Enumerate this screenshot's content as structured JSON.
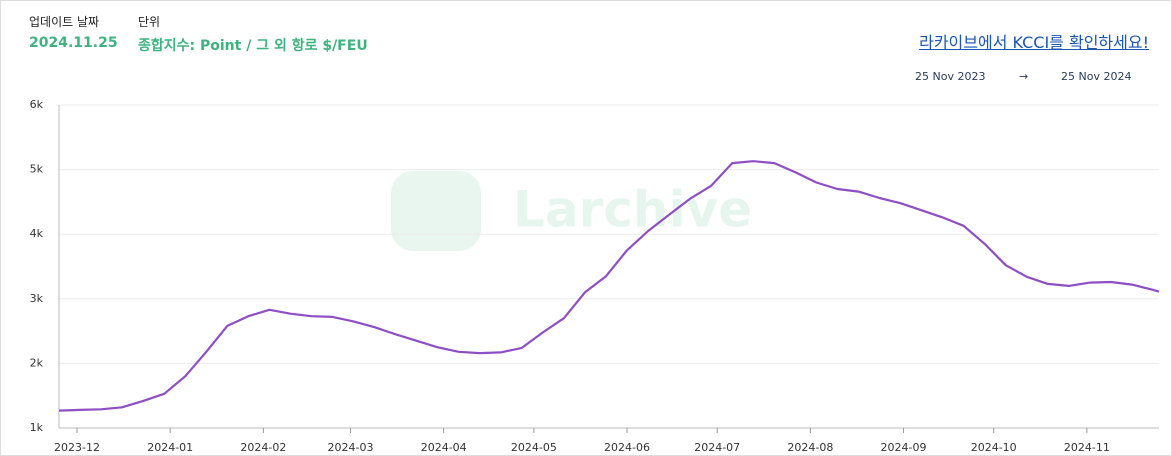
{
  "header": {
    "update_label": "업데이트 날짜",
    "update_date": "2024.11.25",
    "unit_label": "단위",
    "unit_value": "종합지수: Point / 그 외 항로 $/FEU",
    "link": "라카이브에서 KCCI를 확인하세요!",
    "range_start": "25 Nov 2023",
    "range_arrow": "→",
    "range_end": "25 Nov 2024",
    "watermark": "Larchive"
  },
  "chart_data": {
    "type": "line",
    "x": [
      "2023-11-25",
      "2023-12-02",
      "2023-12-09",
      "2023-12-16",
      "2023-12-23",
      "2023-12-30",
      "2024-01-06",
      "2024-01-13",
      "2024-01-20",
      "2024-01-27",
      "2024-02-03",
      "2024-02-10",
      "2024-02-17",
      "2024-02-24",
      "2024-03-02",
      "2024-03-09",
      "2024-03-16",
      "2024-03-23",
      "2024-03-30",
      "2024-04-06",
      "2024-04-13",
      "2024-04-20",
      "2024-04-27",
      "2024-05-04",
      "2024-05-11",
      "2024-05-18",
      "2024-05-25",
      "2024-06-01",
      "2024-06-08",
      "2024-06-15",
      "2024-06-22",
      "2024-06-29",
      "2024-07-06",
      "2024-07-13",
      "2024-07-20",
      "2024-07-27",
      "2024-08-03",
      "2024-08-10",
      "2024-08-17",
      "2024-08-24",
      "2024-08-31",
      "2024-09-07",
      "2024-09-14",
      "2024-09-21",
      "2024-09-28",
      "2024-10-05",
      "2024-10-12",
      "2024-10-19",
      "2024-10-26",
      "2024-11-02",
      "2024-11-09",
      "2024-11-16",
      "2024-11-23",
      "2024-11-25"
    ],
    "series": [
      {
        "name": "KCCI",
        "color": "#8e4fc4",
        "values": [
          1270,
          1280,
          1290,
          1320,
          1420,
          1530,
          1800,
          2180,
          2580,
          2730,
          2830,
          2770,
          2730,
          2720,
          2650,
          2560,
          2450,
          2350,
          2250,
          2180,
          2160,
          2170,
          2240,
          2480,
          2700,
          3100,
          3350,
          3750,
          4050,
          4300,
          4550,
          4750,
          5100,
          5130,
          5100,
          4960,
          4800,
          4700,
          4660,
          4560,
          4480,
          4370,
          4260,
          4130,
          3850,
          3520,
          3340,
          3230,
          3200,
          3250,
          3260,
          3220,
          3140,
          3110
        ]
      }
    ],
    "xlim": [
      "2023-11-25",
      "2024-11-25"
    ],
    "xticks": [
      "2023-12",
      "2024-01",
      "2024-02",
      "2024-03",
      "2024-04",
      "2024-05",
      "2024-06",
      "2024-07",
      "2024-08",
      "2024-09",
      "2024-10",
      "2024-11"
    ],
    "ylim": [
      1000,
      6000
    ],
    "yticks": [
      {
        "value": 1000,
        "label": "1k"
      },
      {
        "value": 2000,
        "label": "2k"
      },
      {
        "value": 3000,
        "label": "3k"
      },
      {
        "value": 4000,
        "label": "4k"
      },
      {
        "value": 5000,
        "label": "5k"
      },
      {
        "value": 6000,
        "label": "6k"
      }
    ],
    "grid": true
  }
}
